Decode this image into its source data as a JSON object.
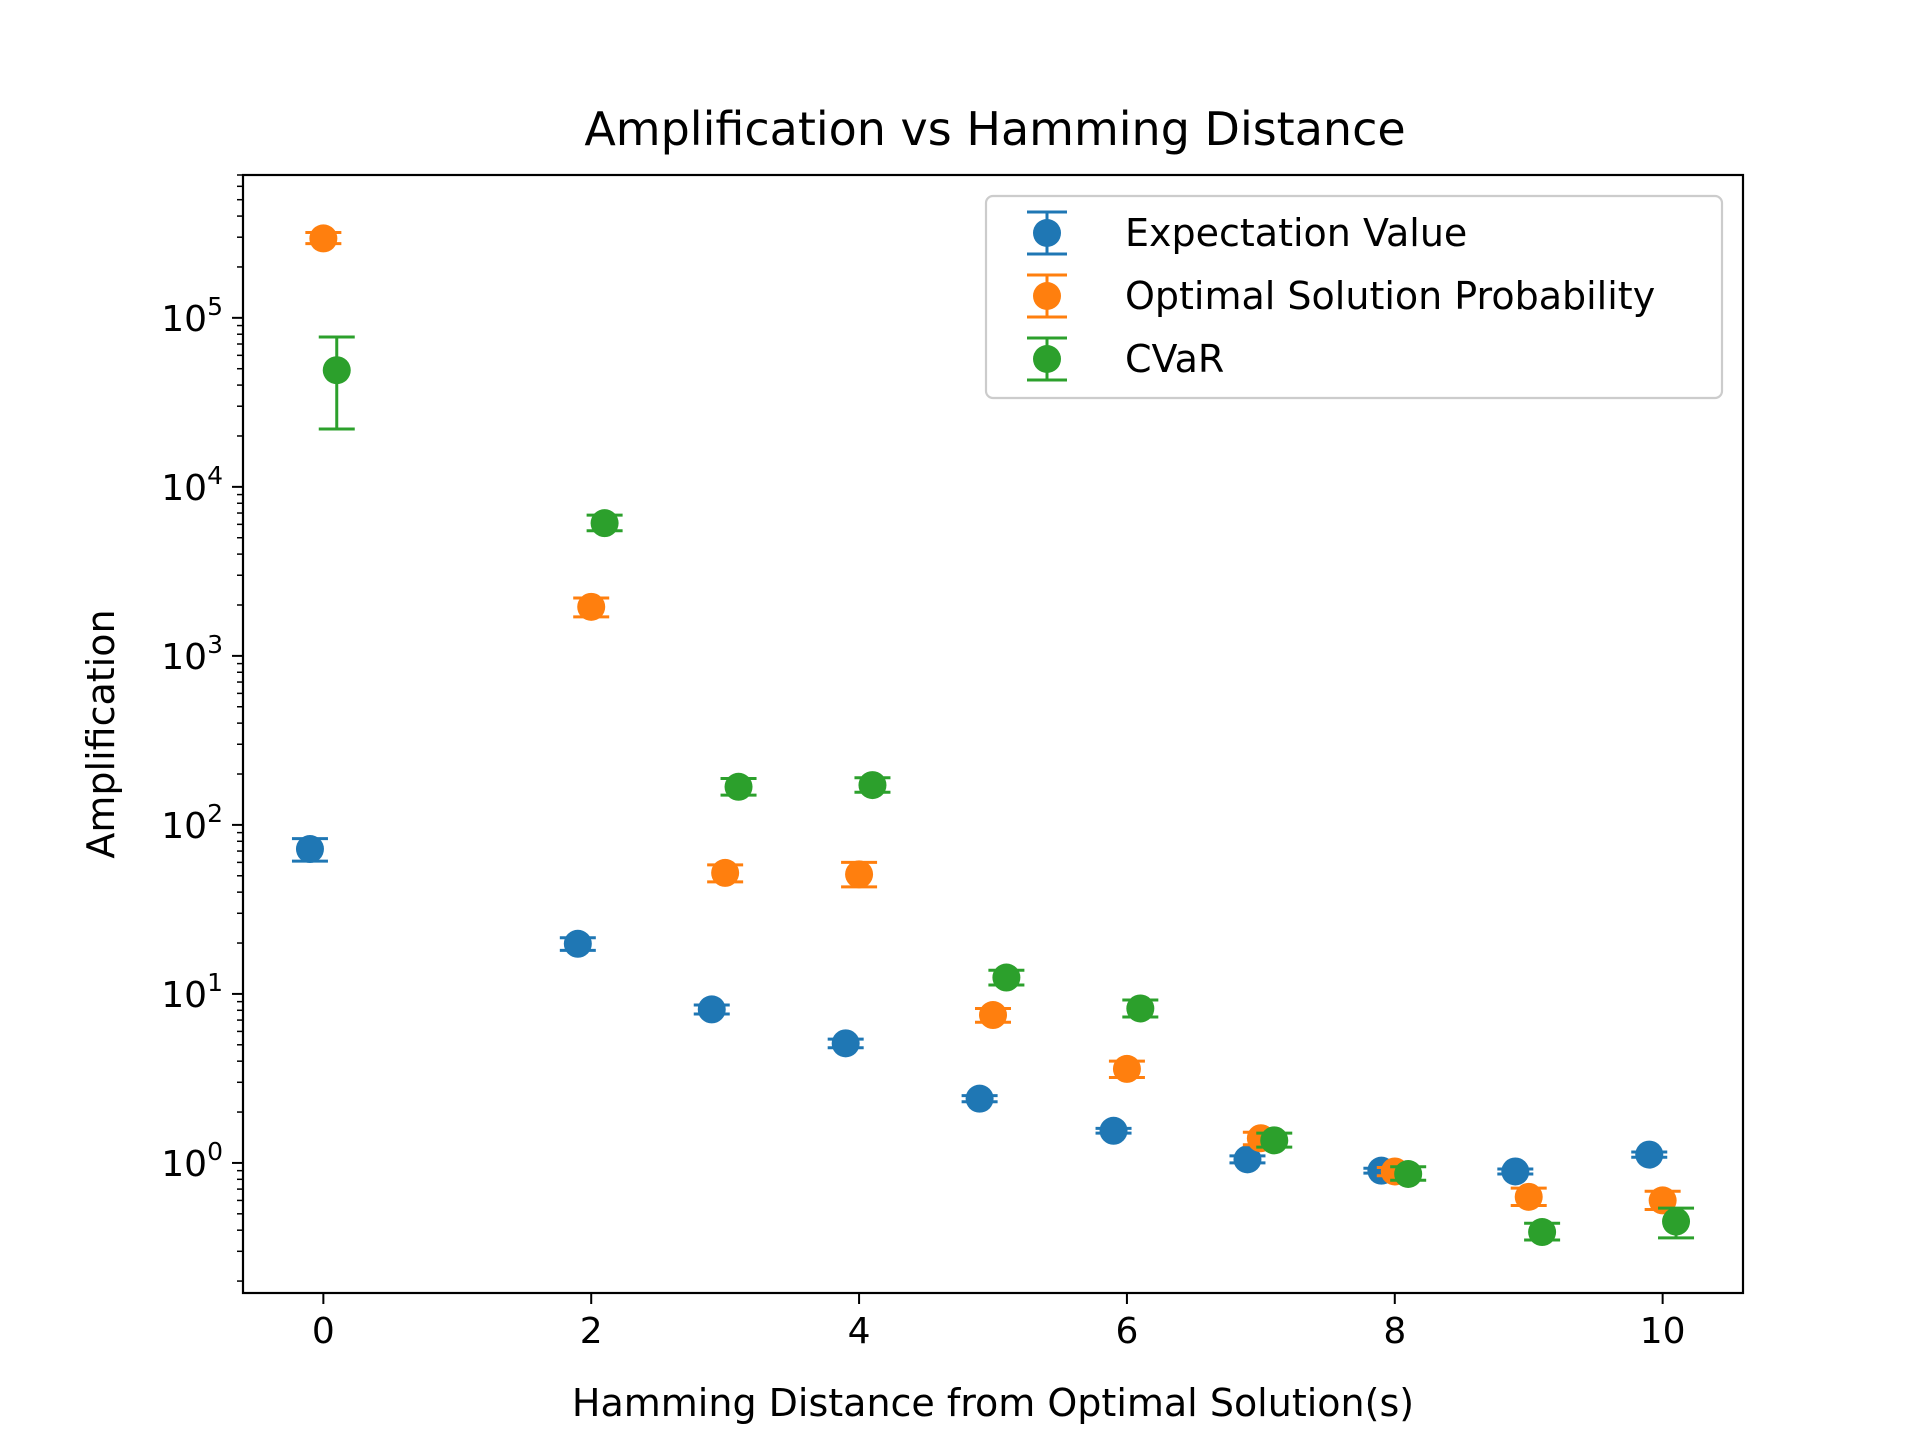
{
  "chart_data": {
    "type": "scatter",
    "title": "Amplification vs Hamming Distance",
    "xlabel": "Hamming Distance from Optimal Solution(s)",
    "ylabel": "Amplification",
    "xlim": [
      -0.6,
      10.6
    ],
    "ylim": [
      0.17,
      700000
    ],
    "yscale": "log",
    "grid": false,
    "legend_position": "top-right",
    "x_ticks": [
      {
        "value": 0,
        "label": "0"
      },
      {
        "value": 2,
        "label": "2"
      },
      {
        "value": 4,
        "label": "4"
      },
      {
        "value": 6,
        "label": "6"
      },
      {
        "value": 8,
        "label": "8"
      },
      {
        "value": 10,
        "label": "10"
      }
    ],
    "y_ticks": [
      {
        "exp": 0,
        "base": "10",
        "sup": "0"
      },
      {
        "exp": 1,
        "base": "10",
        "sup": "1"
      },
      {
        "exp": 2,
        "base": "10",
        "sup": "2"
      },
      {
        "exp": 3,
        "base": "10",
        "sup": "3"
      },
      {
        "exp": 4,
        "base": "10",
        "sup": "4"
      },
      {
        "exp": 5,
        "base": "10",
        "sup": "5"
      }
    ],
    "series": [
      {
        "name": "Expectation Value",
        "color": "#1f77b4",
        "points": [
          {
            "x": -0.1,
            "y": 72,
            "lo": 61,
            "hi": 83
          },
          {
            "x": 1.9,
            "y": 19.8,
            "lo": 18.1,
            "hi": 21.5
          },
          {
            "x": 2.9,
            "y": 8.1,
            "lo": 7.6,
            "hi": 8.6
          },
          {
            "x": 3.9,
            "y": 5.1,
            "lo": 4.8,
            "hi": 5.4
          },
          {
            "x": 4.9,
            "y": 2.4,
            "lo": 2.3,
            "hi": 2.5
          },
          {
            "x": 5.9,
            "y": 1.55,
            "lo": 1.5,
            "hi": 1.6
          },
          {
            "x": 6.9,
            "y": 1.05,
            "lo": 1.0,
            "hi": 1.1
          },
          {
            "x": 7.9,
            "y": 0.9,
            "lo": 0.87,
            "hi": 0.93
          },
          {
            "x": 8.9,
            "y": 0.89,
            "lo": 0.86,
            "hi": 0.92
          },
          {
            "x": 9.9,
            "y": 1.12,
            "lo": 1.08,
            "hi": 1.16
          }
        ]
      },
      {
        "name": "Optimal Solution Probability",
        "color": "#ff7f0e",
        "points": [
          {
            "x": 0.0,
            "y": 295000,
            "lo": 275000,
            "hi": 320000
          },
          {
            "x": 2.0,
            "y": 1950,
            "lo": 1700,
            "hi": 2200
          },
          {
            "x": 3.0,
            "y": 52,
            "lo": 46,
            "hi": 58
          },
          {
            "x": 4.0,
            "y": 51,
            "lo": 43,
            "hi": 60
          },
          {
            "x": 5.0,
            "y": 7.5,
            "lo": 6.8,
            "hi": 8.2
          },
          {
            "x": 6.0,
            "y": 3.6,
            "lo": 3.2,
            "hi": 4.0
          },
          {
            "x": 7.0,
            "y": 1.4,
            "lo": 1.28,
            "hi": 1.52
          },
          {
            "x": 8.0,
            "y": 0.89,
            "lo": 0.84,
            "hi": 0.94
          },
          {
            "x": 9.0,
            "y": 0.63,
            "lo": 0.56,
            "hi": 0.71
          },
          {
            "x": 10.0,
            "y": 0.6,
            "lo": 0.53,
            "hi": 0.68
          }
        ]
      },
      {
        "name": "CVaR",
        "color": "#2ca02c",
        "points": [
          {
            "x": 0.1,
            "y": 49000,
            "lo": 22000,
            "hi": 77000
          },
          {
            "x": 2.1,
            "y": 6100,
            "lo": 5500,
            "hi": 6800
          },
          {
            "x": 3.1,
            "y": 168,
            "lo": 150,
            "hi": 188
          },
          {
            "x": 4.1,
            "y": 172,
            "lo": 156,
            "hi": 190
          },
          {
            "x": 5.1,
            "y": 12.5,
            "lo": 11.3,
            "hi": 13.8
          },
          {
            "x": 6.1,
            "y": 8.2,
            "lo": 7.3,
            "hi": 9.2
          },
          {
            "x": 7.1,
            "y": 1.36,
            "lo": 1.24,
            "hi": 1.5
          },
          {
            "x": 8.1,
            "y": 0.86,
            "lo": 0.79,
            "hi": 0.95
          },
          {
            "x": 9.1,
            "y": 0.39,
            "lo": 0.35,
            "hi": 0.44
          },
          {
            "x": 10.1,
            "y": 0.45,
            "lo": 0.36,
            "hi": 0.54
          }
        ]
      }
    ]
  }
}
